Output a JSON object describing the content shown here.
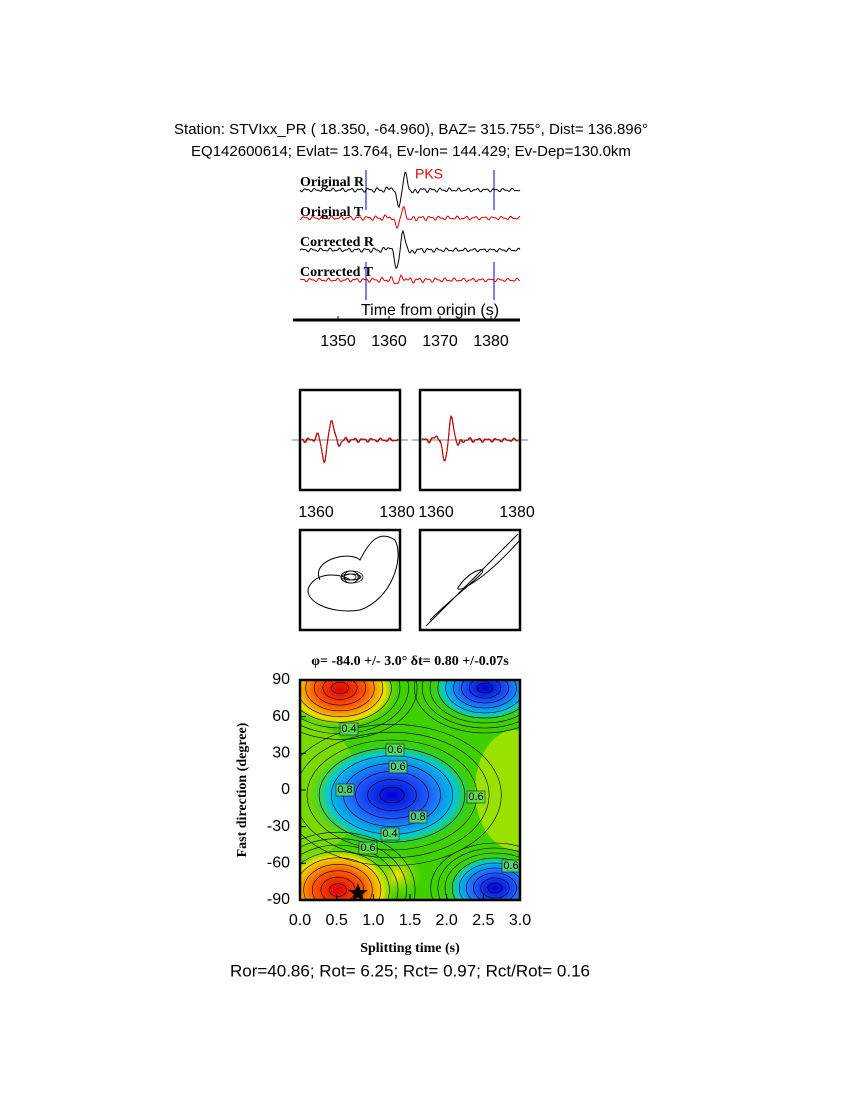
{
  "header": {
    "line1": "Station: STVIxx_PR (  18.350,  -64.960), BAZ=  315.755°, Dist=  136.896°",
    "line2": "EQ142600614; Evlat=  13.764, Ev-lon= 144.429; Ev-Dep=130.0km"
  },
  "traces": {
    "labels": [
      "Original R",
      "Original T",
      "Corrected R",
      "Corrected T"
    ],
    "phase": "PKS",
    "xlabel": "Time from origin (s)",
    "xticks": [
      "1350",
      "1360",
      "1370",
      "1380"
    ]
  },
  "waveforms": {
    "left_xticks": [
      "1360",
      "1380"
    ],
    "right_xticks": [
      "1360",
      "1380"
    ]
  },
  "grid_search": {
    "title": "φ= -84.0 +/- 3.0° δt= 0.80 +/-0.07s",
    "ylabel": "Fast direction (degree)",
    "xlabel": "Splitting time (s)",
    "yticks": [
      "90",
      "60",
      "30",
      "0",
      "-30",
      "-60",
      "-90"
    ],
    "xticks": [
      "0.0",
      "0.5",
      "1.0",
      "1.5",
      "2.0",
      "2.5",
      "3.0"
    ],
    "contour_labels": [
      "0.4",
      "0.6",
      "0.6",
      "0.8",
      "0.6",
      "0.4",
      "0.8",
      "0.6",
      "0.6"
    ]
  },
  "footer": "Ror=40.86; Rot= 6.25; Rct= 0.97; Rct/Rot= 0.16"
}
